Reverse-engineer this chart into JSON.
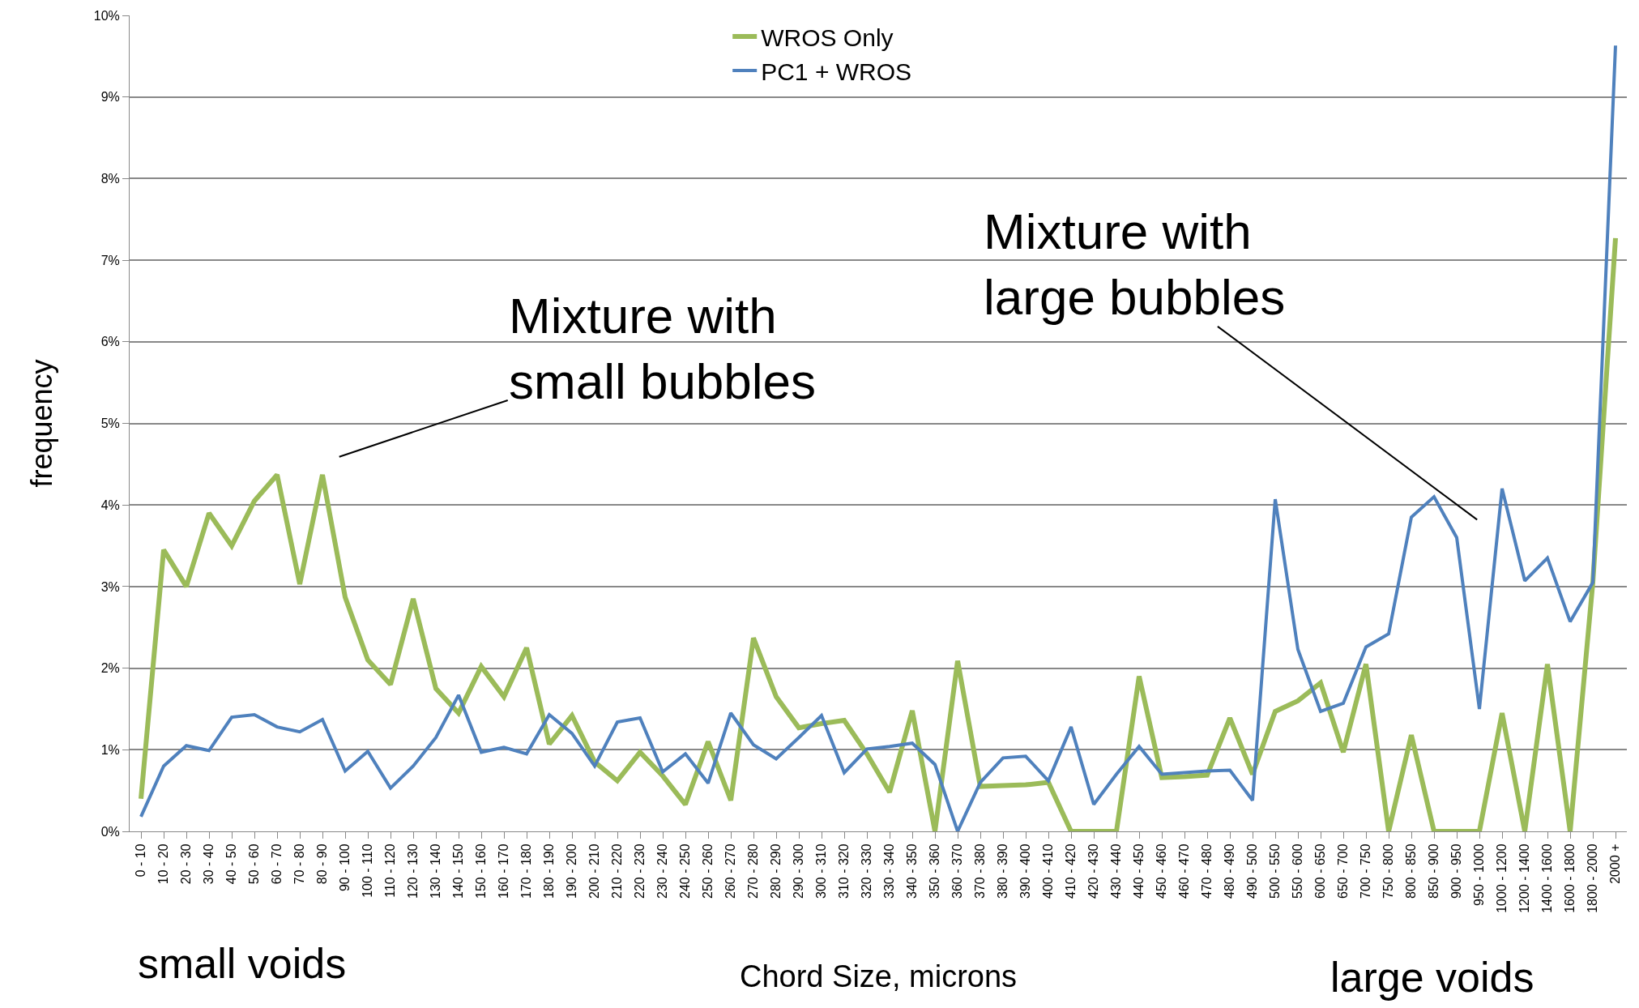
{
  "chart_data": {
    "type": "line",
    "xlabel": "Chord Size, microns",
    "ylabel": "frequency",
    "categories": [
      "0 - 10",
      "10 - 20",
      "20 - 30",
      "30 - 40",
      "40 - 50",
      "50 - 60",
      "60 - 70",
      "70 - 80",
      "80 - 90",
      "90 - 100",
      "100 - 110",
      "110 - 120",
      "120 - 130",
      "130 - 140",
      "140 - 150",
      "150 - 160",
      "160 - 170",
      "170 - 180",
      "180 - 190",
      "190 - 200",
      "200 - 210",
      "210 - 220",
      "220 - 230",
      "230 - 240",
      "240 - 250",
      "250 - 260",
      "260 - 270",
      "270 - 280",
      "280 - 290",
      "290 - 300",
      "300 - 310",
      "310 - 320",
      "320 - 330",
      "330 - 340",
      "340 - 350",
      "350 - 360",
      "360 - 370",
      "370 - 380",
      "380 - 390",
      "390 - 400",
      "400 - 410",
      "410 - 420",
      "420 - 430",
      "430 - 440",
      "440 - 450",
      "450 - 460",
      "460 - 470",
      "470 - 480",
      "480 - 490",
      "490 - 500",
      "500 - 550",
      "550 - 600",
      "600 - 650",
      "650 - 700",
      "700 - 750",
      "750 - 800",
      "800 - 850",
      "850 - 900",
      "900 - 950",
      "950 - 1000",
      "1000 - 1200",
      "1200 - 1400",
      "1400 - 1600",
      "1600 - 1800",
      "1800 - 2000",
      "2000 +"
    ],
    "series": [
      {
        "name": "WROS Only",
        "color": "#9bbb59",
        "values": [
          0.4,
          3.45,
          3.0,
          3.9,
          3.5,
          4.05,
          4.37,
          3.03,
          4.37,
          2.87,
          2.1,
          1.8,
          2.85,
          1.75,
          1.45,
          2.02,
          1.65,
          2.25,
          1.07,
          1.42,
          0.85,
          0.62,
          0.97,
          0.68,
          0.33,
          1.1,
          0.38,
          2.37,
          1.65,
          1.27,
          1.32,
          1.36,
          0.95,
          0.48,
          1.48,
          0,
          2.09,
          0.55,
          0.56,
          0.57,
          0.6,
          0,
          0,
          0,
          1.9,
          0.66,
          0.67,
          0.69,
          1.39,
          0.7,
          1.47,
          1.6,
          1.82,
          0.97,
          2.05,
          0,
          1.18,
          0,
          0,
          0,
          1.45,
          0,
          2.05,
          0,
          3.05,
          7.27
        ]
      },
      {
        "name": "PC1 + WROS",
        "color": "#4f81bd",
        "values": [
          0.18,
          0.8,
          1.05,
          0.99,
          1.4,
          1.43,
          1.28,
          1.22,
          1.37,
          0.74,
          0.98,
          0.53,
          0.8,
          1.15,
          1.67,
          0.97,
          1.03,
          0.95,
          1.43,
          1.2,
          0.8,
          1.34,
          1.39,
          0.73,
          0.95,
          0.59,
          1.45,
          1.06,
          0.89,
          1.15,
          1.42,
          0.72,
          1.01,
          1.04,
          1.08,
          0.82,
          0,
          0.6,
          0.9,
          0.92,
          0.62,
          1.28,
          0.33,
          0.7,
          1.04,
          0.7,
          0.72,
          0.74,
          0.75,
          0.38,
          4.07,
          2.23,
          1.47,
          1.57,
          2.26,
          2.42,
          3.85,
          4.1,
          3.6,
          1.5,
          4.2,
          3.07,
          3.35,
          2.57,
          3.05,
          9.63
        ]
      }
    ],
    "ylim": [
      0,
      10
    ],
    "yticks": [
      {
        "value": 0,
        "label": "0%"
      },
      {
        "value": 1,
        "label": "1%"
      },
      {
        "value": 2,
        "label": "2%"
      },
      {
        "value": 3,
        "label": "3%"
      },
      {
        "value": 4,
        "label": "4%"
      },
      {
        "value": 5,
        "label": "5%"
      },
      {
        "value": 6,
        "label": "6%"
      },
      {
        "value": 7,
        "label": "7%"
      },
      {
        "value": 8,
        "label": "8%"
      },
      {
        "value": 9,
        "label": "9%"
      },
      {
        "value": 10,
        "label": "10%"
      }
    ],
    "grid": "y",
    "legend": "top",
    "marker": "none",
    "line_style": "solid",
    "annotations": [
      "Mixture with\nsmall bubbles",
      "Mixture with\nlarge bubbles",
      "small voids",
      "large voids"
    ]
  }
}
